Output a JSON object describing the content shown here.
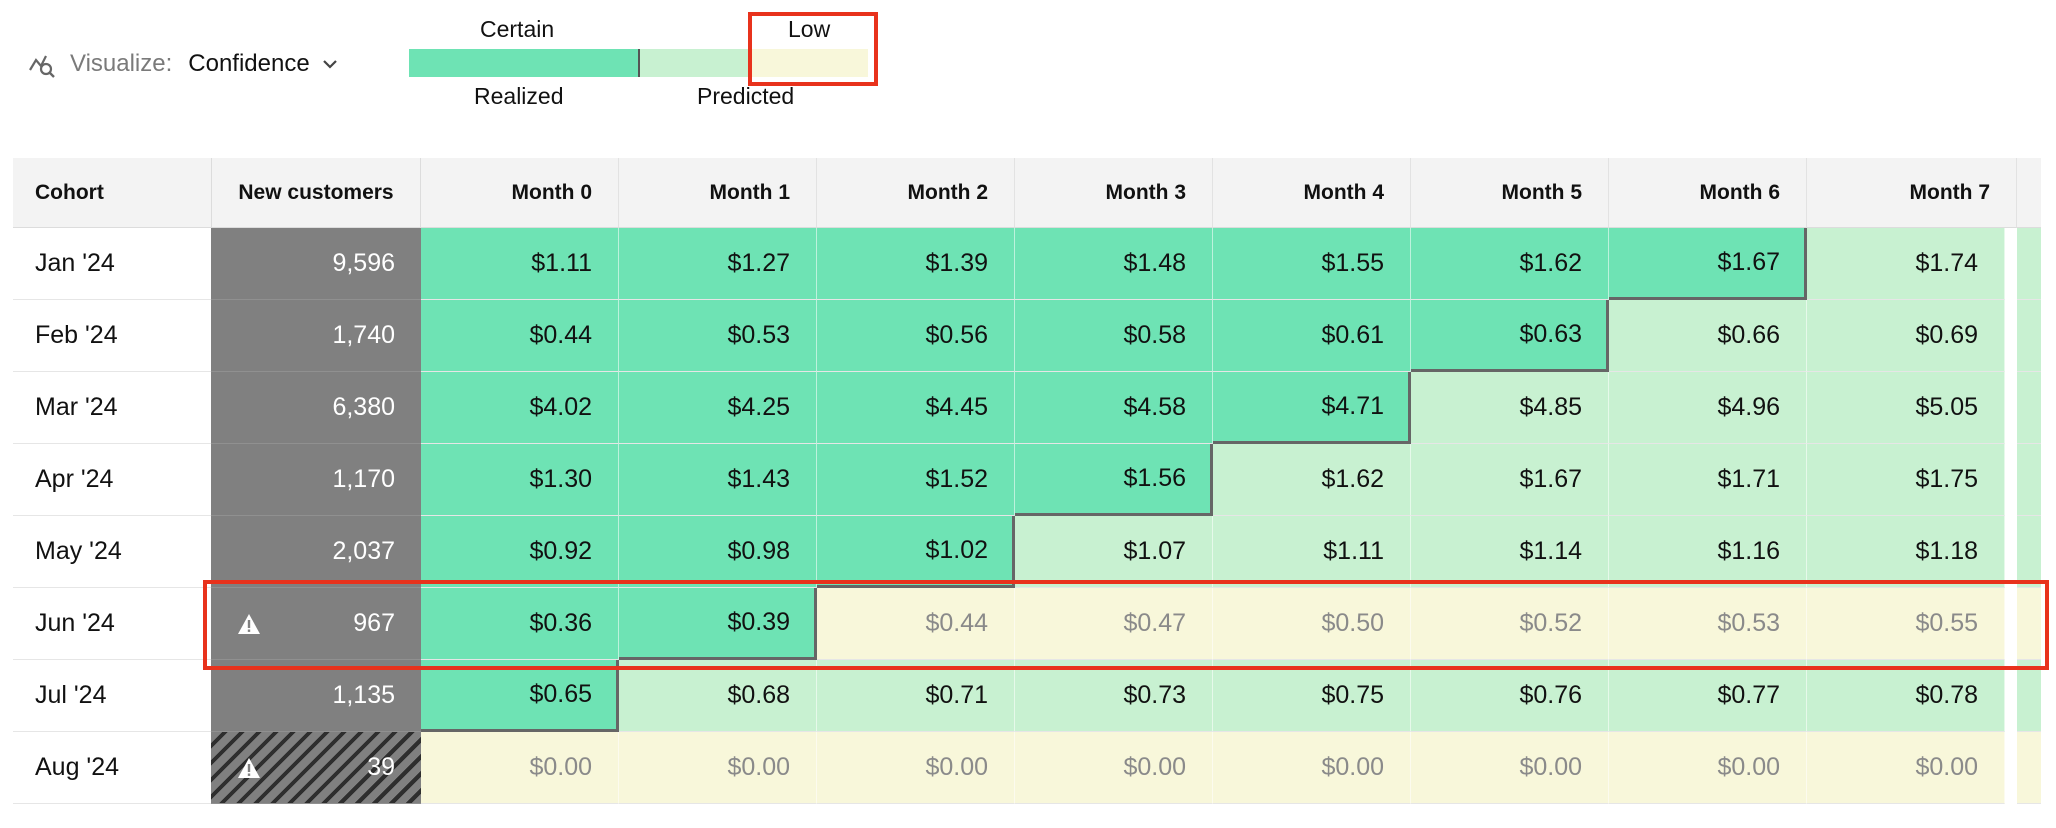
{
  "toolbar": {
    "icon": "visualize-icon",
    "label": "Visualize:",
    "value": "Confidence"
  },
  "legend": {
    "top_certain": "Certain",
    "top_low": "Low",
    "bottom_realized": "Realized",
    "bottom_predicted": "Predicted"
  },
  "colors": {
    "realized": "#6ee3b4",
    "predicted": "#c8f1d1",
    "low": "#f8f7da",
    "new_customers": "#808080",
    "highlight": "#e8321c"
  },
  "table": {
    "headers": [
      "Cohort",
      "New customers",
      "Month 0",
      "Month 1",
      "Month 2",
      "Month 3",
      "Month 4",
      "Month 5",
      "Month 6",
      "Month 7"
    ],
    "rows": [
      {
        "cohort": "Jan '24",
        "new_customers": "9,596",
        "values": [
          "$1.11",
          "$1.27",
          "$1.39",
          "$1.48",
          "$1.55",
          "$1.62",
          "$1.67",
          "$1.74"
        ],
        "realized_through": 6,
        "low": false
      },
      {
        "cohort": "Feb '24",
        "new_customers": "1,740",
        "values": [
          "$0.44",
          "$0.53",
          "$0.56",
          "$0.58",
          "$0.61",
          "$0.63",
          "$0.66",
          "$0.69"
        ],
        "realized_through": 5,
        "low": false
      },
      {
        "cohort": "Mar '24",
        "new_customers": "6,380",
        "values": [
          "$4.02",
          "$4.25",
          "$4.45",
          "$4.58",
          "$4.71",
          "$4.85",
          "$4.96",
          "$5.05"
        ],
        "realized_through": 4,
        "low": false
      },
      {
        "cohort": "Apr '24",
        "new_customers": "1,170",
        "values": [
          "$1.30",
          "$1.43",
          "$1.52",
          "$1.56",
          "$1.62",
          "$1.67",
          "$1.71",
          "$1.75"
        ],
        "realized_through": 3,
        "low": false
      },
      {
        "cohort": "May '24",
        "new_customers": "2,037",
        "values": [
          "$0.92",
          "$0.98",
          "$1.02",
          "$1.07",
          "$1.11",
          "$1.14",
          "$1.16",
          "$1.18"
        ],
        "realized_through": 2,
        "low": false
      },
      {
        "cohort": "Jun '24",
        "new_customers": "967",
        "values": [
          "$0.36",
          "$0.39",
          "$0.44",
          "$0.47",
          "$0.50",
          "$0.52",
          "$0.53",
          "$0.55"
        ],
        "realized_through": 1,
        "low": true,
        "warning": true
      },
      {
        "cohort": "Jul '24",
        "new_customers": "1,135",
        "values": [
          "$0.65",
          "$0.68",
          "$0.71",
          "$0.73",
          "$0.75",
          "$0.76",
          "$0.77",
          "$0.78"
        ],
        "realized_through": 0,
        "low": false
      },
      {
        "cohort": "Aug '24",
        "new_customers": "39",
        "values": [
          "$0.00",
          "$0.00",
          "$0.00",
          "$0.00",
          "$0.00",
          "$0.00",
          "$0.00",
          "$0.00"
        ],
        "realized_through": -1,
        "low": true,
        "warning": true,
        "hatched": true
      }
    ]
  }
}
